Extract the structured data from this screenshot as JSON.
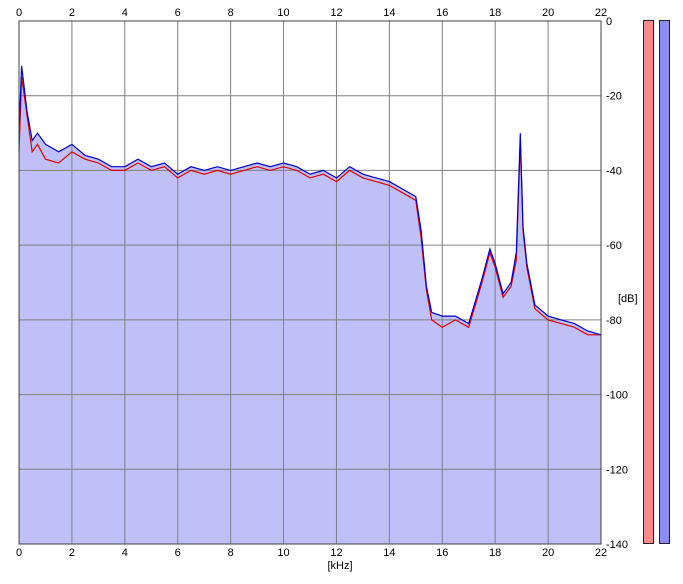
{
  "chart_data": {
    "type": "line",
    "title": "",
    "xlabel": "[kHz]",
    "ylabel": "[dB]",
    "xlim": [
      0,
      22
    ],
    "ylim": [
      -140,
      0
    ],
    "x_ticks": [
      "0",
      "2",
      "4",
      "6",
      "8",
      "10",
      "12",
      "14",
      "16",
      "18",
      "20",
      "22"
    ],
    "y_ticks": [
      "0",
      "-20",
      "-40",
      "-60",
      "-80",
      "-100",
      "-120",
      "-140"
    ],
    "grid": true,
    "colors": {
      "left": "#e00000",
      "right": "#0000cc",
      "fill": "#c0c0f8",
      "grid": "#808080"
    },
    "series": [
      {
        "channel": "left",
        "x": [
          0,
          0.1,
          0.2,
          0.3,
          0.5,
          0.7,
          1,
          1.5,
          2,
          2.5,
          3,
          3.5,
          4,
          4.5,
          5,
          5.5,
          6,
          6.5,
          7,
          7.5,
          8,
          8.5,
          9,
          9.5,
          10,
          10.5,
          11,
          11.5,
          12,
          12.5,
          13,
          13.5,
          14,
          14.5,
          15,
          15.2,
          15.4,
          15.6,
          16,
          16.5,
          17,
          17.5,
          17.8,
          18,
          18.3,
          18.6,
          18.8,
          18.95,
          19.05,
          19.2,
          19.5,
          20,
          20.5,
          21,
          21.5,
          22
        ],
        "y": [
          -35,
          -15,
          -20,
          -25,
          -35,
          -33,
          -37,
          -38,
          -35,
          -37,
          -38,
          -40,
          -40,
          -38,
          -40,
          -39,
          -42,
          -40,
          -41,
          -40,
          -41,
          -40,
          -39,
          -40,
          -39,
          -40,
          -42,
          -41,
          -43,
          -40,
          -42,
          -43,
          -44,
          -46,
          -48,
          -58,
          -72,
          -80,
          -82,
          -80,
          -82,
          -70,
          -62,
          -66,
          -74,
          -71,
          -64,
          -32,
          -56,
          -66,
          -77,
          -80,
          -81,
          -82,
          -84,
          -84
        ]
      },
      {
        "channel": "right",
        "x": [
          0,
          0.1,
          0.2,
          0.3,
          0.5,
          0.7,
          1,
          1.5,
          2,
          2.5,
          3,
          3.5,
          4,
          4.5,
          5,
          5.5,
          6,
          6.5,
          7,
          7.5,
          8,
          8.5,
          9,
          9.5,
          10,
          10.5,
          11,
          11.5,
          12,
          12.5,
          13,
          13.5,
          14,
          14.5,
          15,
          15.2,
          15.4,
          15.6,
          16,
          16.5,
          17,
          17.5,
          17.8,
          18,
          18.3,
          18.6,
          18.8,
          18.95,
          19.05,
          19.2,
          19.5,
          20,
          20.5,
          21,
          21.5,
          22
        ],
        "y": [
          -30,
          -12,
          -18,
          -24,
          -32,
          -30,
          -33,
          -35,
          -33,
          -36,
          -37,
          -39,
          -39,
          -37,
          -39,
          -38,
          -41,
          -39,
          -40,
          -39,
          -40,
          -39,
          -38,
          -39,
          -38,
          -39,
          -41,
          -40,
          -42,
          -39,
          -41,
          -42,
          -43,
          -45,
          -47,
          -56,
          -71,
          -78,
          -79,
          -79,
          -81,
          -69,
          -61,
          -65,
          -73,
          -70,
          -62,
          -30,
          -55,
          -65,
          -76,
          -79,
          -80,
          -81,
          -83,
          -84
        ]
      }
    ]
  }
}
